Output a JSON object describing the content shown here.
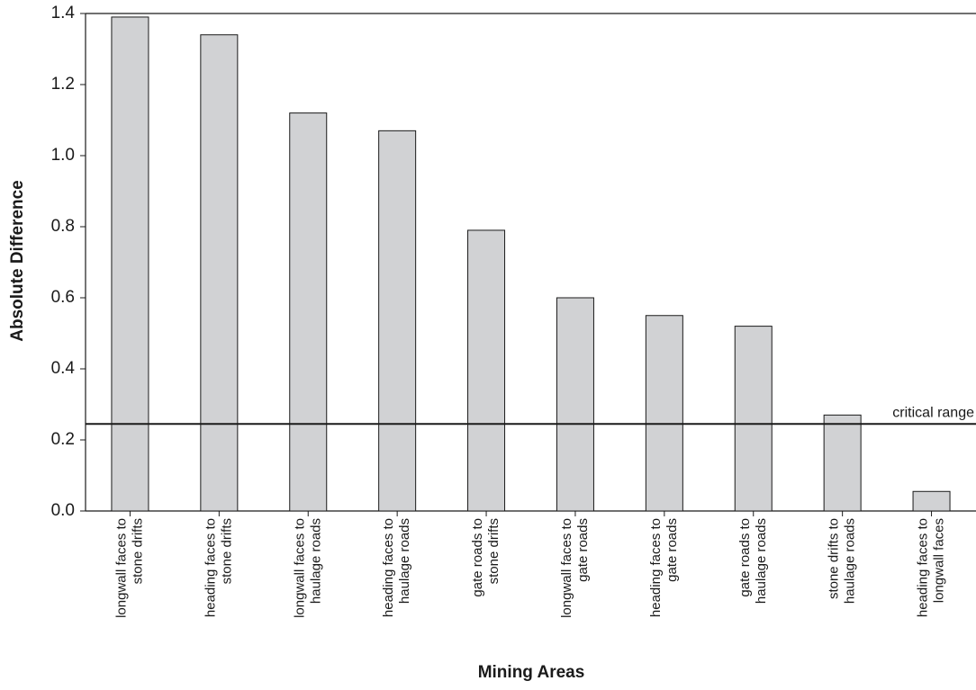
{
  "chart_data": {
    "type": "bar",
    "x_label": "Mining Areas",
    "y_label": "Absolute Difference",
    "categories": [
      "longwall faces to\nstone drifts",
      "heading faces to\nstone drifts",
      "longwall faces to\nhaulage roads",
      "heading faces to\nhaulage roads",
      "gate roads to\nstone drifts",
      "longwall faces to\ngate roads",
      "heading faces to\ngate roads",
      "gate roads to\nhaulage roads",
      "stone drifts to\nhaulage roads",
      "heading faces to\nlongwall faces"
    ],
    "values": [
      1.39,
      1.34,
      1.12,
      1.07,
      0.79,
      0.6,
      0.55,
      0.52,
      0.27,
      0.055
    ],
    "color": "#d1d2d4",
    "ylim": [
      0,
      1.4
    ],
    "yticks": [
      {
        "value": 0,
        "label": "0.0"
      },
      0.2,
      0.4,
      0.6,
      0.8,
      {
        "value": 1,
        "label": "1.0"
      },
      1.2,
      1.4
    ],
    "reference_line": {
      "value": 0.245,
      "label": "critical range"
    }
  }
}
